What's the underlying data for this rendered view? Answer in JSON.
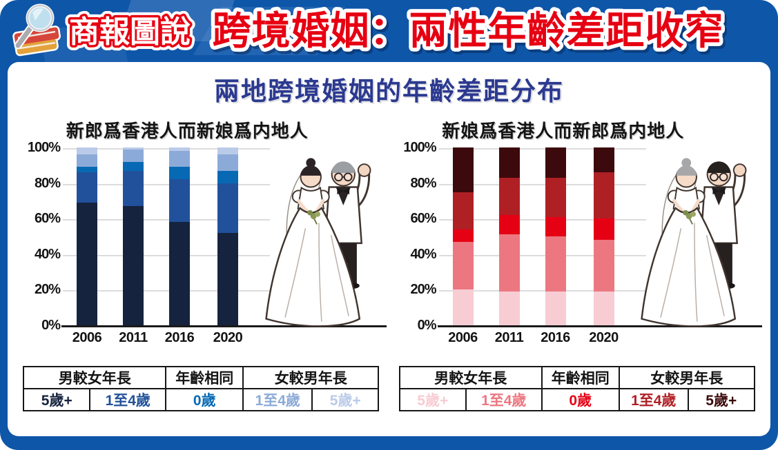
{
  "header": {
    "logo_text": "商報圖說",
    "title": "跨境婚姻：兩性年齡差距收窄"
  },
  "subtitle": "兩地跨境婚姻的年齡差距分布",
  "colors": {
    "frame_blue": "#0e56a8",
    "title_red": "#e60012",
    "subtitle_blue": "#2b3990",
    "grid_gray": "#dcdcdc",
    "axis_black": "#1a1a1a"
  },
  "chart_data": [
    {
      "type": "bar",
      "stacked": true,
      "title": "新郎爲香港人而新娘爲内地人",
      "categories": [
        "2006",
        "2011",
        "2016",
        "2020"
      ],
      "series": [
        {
          "name": "男較女年長 5歲+",
          "color": "#16233e",
          "values": [
            69,
            67,
            58,
            52
          ]
        },
        {
          "name": "男較女年長 1至4歲",
          "color": "#21519b",
          "values": [
            17,
            20,
            24,
            28
          ]
        },
        {
          "name": "年齡相同 0歲",
          "color": "#0769b4",
          "values": [
            3,
            5,
            7,
            7
          ]
        },
        {
          "name": "女較男年長 1至4歲",
          "color": "#8caad8",
          "values": [
            7,
            7,
            9,
            9
          ]
        },
        {
          "name": "女較男年長 5歲+",
          "color": "#bacbe9",
          "values": [
            4,
            1,
            2,
            4
          ]
        }
      ],
      "ylabel_ticks": [
        "100%",
        "80%",
        "60%",
        "40%",
        "20%",
        "0%"
      ],
      "ylim": [
        0,
        100
      ],
      "grid": true,
      "legend_position": "table-below"
    },
    {
      "type": "bar",
      "stacked": true,
      "title": "新娘爲香港人而新郎爲内地人",
      "categories": [
        "2006",
        "2011",
        "2016",
        "2020"
      ],
      "series": [
        {
          "name": "男較女年長 5歲+",
          "color": "#f7ccd3",
          "values": [
            20,
            19,
            19,
            19
          ]
        },
        {
          "name": "男較女年長 1至4歲",
          "color": "#ec7781",
          "values": [
            27,
            32,
            31,
            29
          ]
        },
        {
          "name": "年齡相同 0歲",
          "color": "#e60014",
          "values": [
            7,
            11,
            11,
            12
          ]
        },
        {
          "name": "女較男年長 1至4歲",
          "color": "#af2025",
          "values": [
            21,
            21,
            22,
            26
          ]
        },
        {
          "name": "女較男年長 5歲+",
          "color": "#3c0a0c",
          "values": [
            25,
            17,
            17,
            14
          ]
        }
      ],
      "ylabel_ticks": [
        "100%",
        "80%",
        "60%",
        "40%",
        "20%",
        "0%"
      ],
      "ylim": [
        0,
        100
      ],
      "grid": true,
      "legend_position": "table-below"
    }
  ],
  "tables": [
    {
      "headers": [
        {
          "label": "男較女年長",
          "span": 2
        },
        {
          "label": "年齡相同",
          "span": 1
        },
        {
          "label": "女較男年長",
          "span": 2
        }
      ],
      "cells": [
        {
          "label": "5歲+",
          "color": "#16233e"
        },
        {
          "label": "1至4歲",
          "color": "#21519b"
        },
        {
          "label": "0歲",
          "color": "#0769b4"
        },
        {
          "label": "1至4歲",
          "color": "#8caad8"
        },
        {
          "label": "5歲+",
          "color": "#bacbe9"
        }
      ]
    },
    {
      "headers": [
        {
          "label": "男較女年長",
          "span": 2
        },
        {
          "label": "年齡相同",
          "span": 1
        },
        {
          "label": "女較男年長",
          "span": 2
        }
      ],
      "cells": [
        {
          "label": "5歲+",
          "color": "#f7ccd3"
        },
        {
          "label": "1至4歲",
          "color": "#ec7781"
        },
        {
          "label": "0歲",
          "color": "#e60014"
        },
        {
          "label": "1至4歲",
          "color": "#af2025"
        },
        {
          "label": "5歲+",
          "color": "#3c0a0c"
        }
      ]
    }
  ],
  "illustrations": [
    {
      "name": "older-groom-with-younger-bride",
      "groom_hair": "#9b9fa3",
      "bride_hair": "#2c2327"
    },
    {
      "name": "older-bride-with-younger-groom",
      "groom_hair": "#26201f",
      "bride_hair": "#a7a7aa"
    }
  ]
}
